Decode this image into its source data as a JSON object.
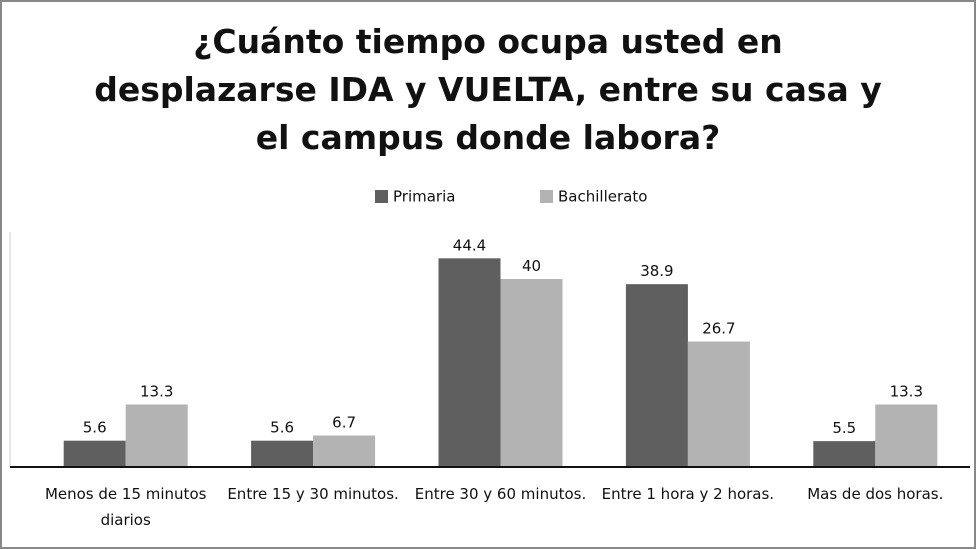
{
  "chart_data": {
    "type": "bar",
    "title": "¿Cuánto tiempo ocupa usted en desplazarse IDA y VUELTA, entre su  casa y el campus donde labora?",
    "categories": [
      "Menos de 15 minutos diarios",
      "Entre 15 y 30 minutos.",
      "Entre 30 y 60 minutos.",
      "Entre 1 hora y 2 horas.",
      "Mas de dos horas."
    ],
    "series": [
      {
        "name": "Primaria",
        "color": "#5f5f5f",
        "values": [
          5.6,
          5.6,
          44.4,
          38.9,
          5.5
        ]
      },
      {
        "name": "Bachillerato",
        "color": "#b3b3b3",
        "values": [
          13.3,
          6.7,
          40,
          26.7,
          13.3
        ]
      }
    ],
    "ylim": [
      0,
      50
    ],
    "legend": "top",
    "grid": false
  }
}
